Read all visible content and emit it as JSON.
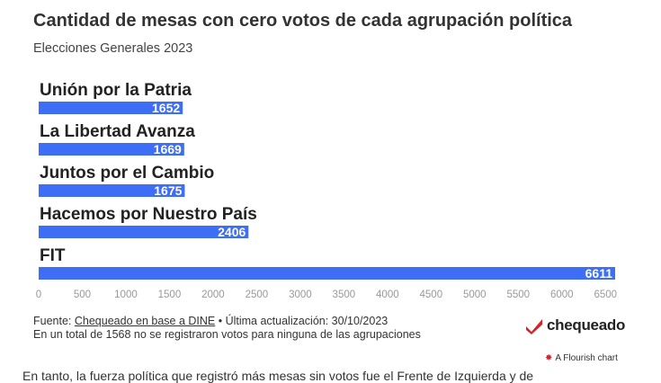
{
  "header": {
    "title": "Cantidad de mesas con cero votos de cada agrupación política",
    "subtitle": "Elecciones Generales 2023"
  },
  "chart_data": {
    "type": "bar",
    "orientation": "horizontal",
    "title": "Cantidad de mesas con cero votos de cada agrupación política",
    "subtitle": "Elecciones Generales 2023",
    "categories": [
      "Unión por la Patria",
      "La Libertad Avanza",
      "Juntos por el Cambio",
      "Hacemos por Nuestro País",
      "FIT"
    ],
    "values": [
      1652,
      1669,
      1675,
      2406,
      6611
    ],
    "xlim": [
      0,
      6611
    ],
    "xticks": [
      "0",
      "500",
      "1000",
      "1500",
      "2000",
      "2500",
      "3000",
      "3500",
      "4000",
      "4500",
      "5000",
      "5500",
      "6000",
      "6500"
    ],
    "bar_color": "#3e6ef5",
    "grid": false,
    "legend": "none"
  },
  "footer": {
    "source_prefix": "Fuente: ",
    "source_link": "Chequeado en base a DINE",
    "source_suffix": " • Última actualización: 30/10/2023",
    "note": "En un total de 1568 no se registraron votos para ninguna de las agrupaciones"
  },
  "branding": {
    "logo_text": "chequeado",
    "logo_color": "#d6232a",
    "flourish_text": "A Flourish chart"
  },
  "truncated_text": "En tanto, la fuerza política que registró más mesas sin votos fue el Frente de Izquierda y de"
}
